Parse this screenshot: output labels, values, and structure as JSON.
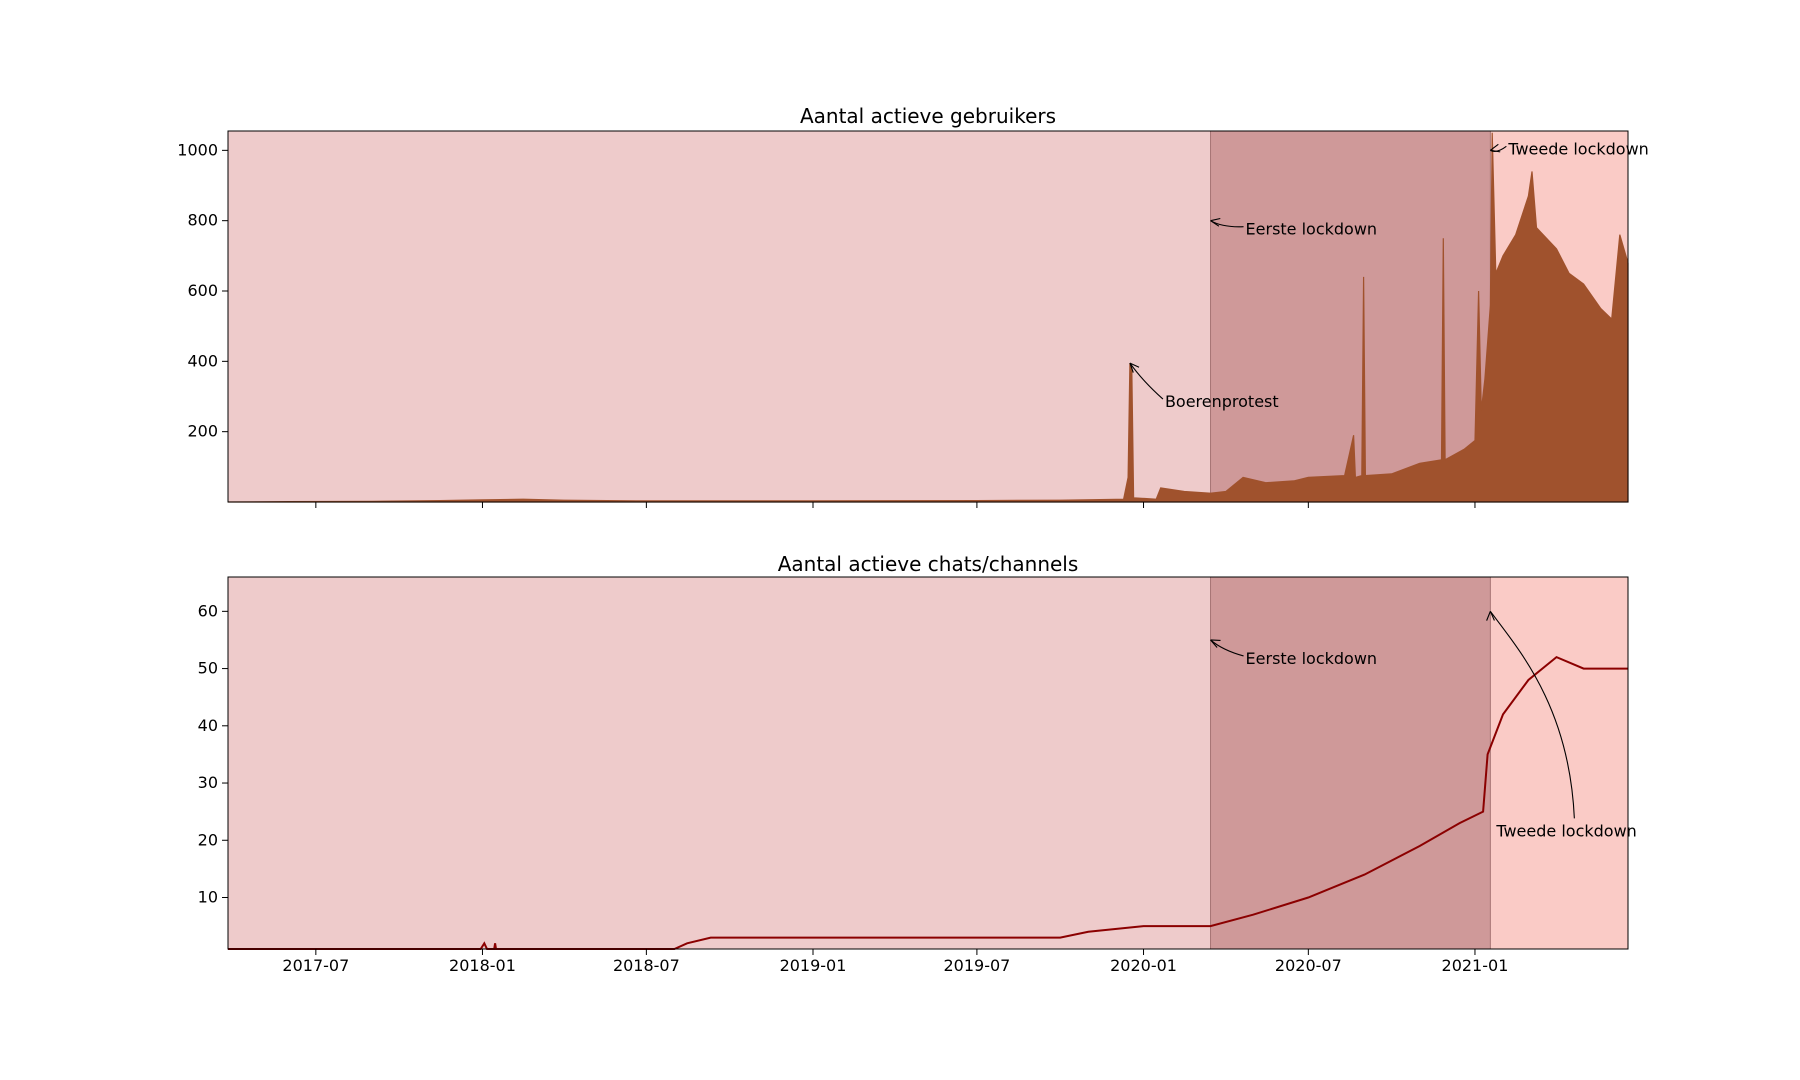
{
  "colors": {
    "period_before": "#eecbcb",
    "period_first_lockdown": "#cf9999",
    "period_second_lockdown": "#facbc6",
    "users_series": "#a0522d",
    "chats_series": "#8b0000"
  },
  "x_axis": {
    "start": "2017-03-26",
    "end": "2021-06-19",
    "ticks": [
      {
        "date": "2017-07-01",
        "label": "2017-07"
      },
      {
        "date": "2018-01-01",
        "label": "2018-01"
      },
      {
        "date": "2018-07-01",
        "label": "2018-07"
      },
      {
        "date": "2019-01-01",
        "label": "2019-01"
      },
      {
        "date": "2019-07-01",
        "label": "2019-07"
      },
      {
        "date": "2020-01-01",
        "label": "2020-01"
      },
      {
        "date": "2020-07-01",
        "label": "2020-07"
      },
      {
        "date": "2021-01-01",
        "label": "2021-01"
      }
    ]
  },
  "periods": [
    {
      "start": "2017-03-26",
      "end": "2020-03-15",
      "color_key": "period_before"
    },
    {
      "start": "2020-03-15",
      "end": "2021-01-18",
      "color_key": "period_first_lockdown"
    },
    {
      "start": "2021-01-18",
      "end": "2021-06-19",
      "color_key": "period_second_lockdown"
    }
  ],
  "chart_data": [
    {
      "type": "area",
      "title": "Aantal actieve gebruikers",
      "ylim": [
        0,
        1055
      ],
      "yticks": [
        200,
        400,
        600,
        800,
        1000
      ],
      "series_color_key": "users_series",
      "points": [
        [
          "2017-03-26",
          0
        ],
        [
          "2017-06-01",
          1
        ],
        [
          "2017-09-01",
          2
        ],
        [
          "2017-11-15",
          4
        ],
        [
          "2018-01-01",
          6
        ],
        [
          "2018-02-15",
          8
        ],
        [
          "2018-04-01",
          5
        ],
        [
          "2018-07-01",
          3
        ],
        [
          "2019-01-01",
          3
        ],
        [
          "2019-07-01",
          4
        ],
        [
          "2019-10-01",
          5
        ],
        [
          "2019-12-10",
          8
        ],
        [
          "2019-12-15",
          70
        ],
        [
          "2019-12-17",
          395
        ],
        [
          "2019-12-19",
          380
        ],
        [
          "2019-12-21",
          12
        ],
        [
          "2020-01-15",
          8
        ],
        [
          "2020-01-20",
          40
        ],
        [
          "2020-02-15",
          30
        ],
        [
          "2020-03-15",
          25
        ],
        [
          "2020-04-01",
          30
        ],
        [
          "2020-04-20",
          70
        ],
        [
          "2020-05-15",
          55
        ],
        [
          "2020-06-15",
          60
        ],
        [
          "2020-07-01",
          70
        ],
        [
          "2020-08-10",
          75
        ],
        [
          "2020-08-20",
          190
        ],
        [
          "2020-08-22",
          70
        ],
        [
          "2020-08-29",
          75
        ],
        [
          "2020-08-31",
          640
        ],
        [
          "2020-09-02",
          75
        ],
        [
          "2020-10-01",
          80
        ],
        [
          "2020-11-01",
          110
        ],
        [
          "2020-11-25",
          120
        ],
        [
          "2020-11-27",
          750
        ],
        [
          "2020-11-29",
          120
        ],
        [
          "2020-12-20",
          150
        ],
        [
          "2021-01-01",
          175
        ],
        [
          "2021-01-05",
          600
        ],
        [
          "2021-01-08",
          260
        ],
        [
          "2021-01-12",
          350
        ],
        [
          "2021-01-18",
          560
        ],
        [
          "2021-01-20",
          1050
        ],
        [
          "2021-01-24",
          650
        ],
        [
          "2021-02-01",
          700
        ],
        [
          "2021-02-15",
          760
        ],
        [
          "2021-03-01",
          870
        ],
        [
          "2021-03-05",
          940
        ],
        [
          "2021-03-10",
          780
        ],
        [
          "2021-04-01",
          720
        ],
        [
          "2021-04-15",
          650
        ],
        [
          "2021-05-01",
          620
        ],
        [
          "2021-05-20",
          550
        ],
        [
          "2021-06-01",
          520
        ],
        [
          "2021-06-10",
          760
        ],
        [
          "2021-06-19",
          680
        ]
      ],
      "annotations": [
        {
          "text": "Boerenprotest",
          "point_date": "2019-12-17",
          "point_value": 395
        },
        {
          "text": "Eerste lockdown",
          "point_date": "2020-03-15",
          "point_value": 800
        },
        {
          "text": "Tweede lockdown",
          "point_date": "2021-01-18",
          "point_value": 1000
        }
      ]
    },
    {
      "type": "line",
      "title": "Aantal actieve chats/channels",
      "ylim": [
        1,
        66
      ],
      "yticks": [
        10,
        20,
        30,
        40,
        50,
        60
      ],
      "series_color_key": "chats_series",
      "points": [
        [
          "2017-03-26",
          1
        ],
        [
          "2017-12-30",
          1
        ],
        [
          "2018-01-03",
          2
        ],
        [
          "2018-01-06",
          1
        ],
        [
          "2018-01-14",
          1
        ],
        [
          "2018-01-15",
          2
        ],
        [
          "2018-01-16",
          1
        ],
        [
          "2018-08-01",
          1
        ],
        [
          "2018-08-15",
          2
        ],
        [
          "2018-09-10",
          3
        ],
        [
          "2019-01-01",
          3
        ],
        [
          "2019-07-01",
          3
        ],
        [
          "2019-10-01",
          3
        ],
        [
          "2019-11-01",
          4
        ],
        [
          "2020-01-01",
          5
        ],
        [
          "2020-03-15",
          5
        ],
        [
          "2020-05-01",
          7
        ],
        [
          "2020-07-01",
          10
        ],
        [
          "2020-09-01",
          14
        ],
        [
          "2020-11-01",
          19
        ],
        [
          "2020-12-15",
          23
        ],
        [
          "2021-01-10",
          25
        ],
        [
          "2021-01-15",
          35
        ],
        [
          "2021-02-01",
          42
        ],
        [
          "2021-03-01",
          48
        ],
        [
          "2021-04-01",
          52
        ],
        [
          "2021-05-01",
          50
        ],
        [
          "2021-06-19",
          50
        ]
      ],
      "annotations": [
        {
          "text": "Eerste lockdown",
          "point_date": "2020-03-15",
          "point_value": 55
        },
        {
          "text": "Tweede lockdown",
          "point_date": "2021-01-18",
          "point_value": 60
        }
      ]
    }
  ]
}
